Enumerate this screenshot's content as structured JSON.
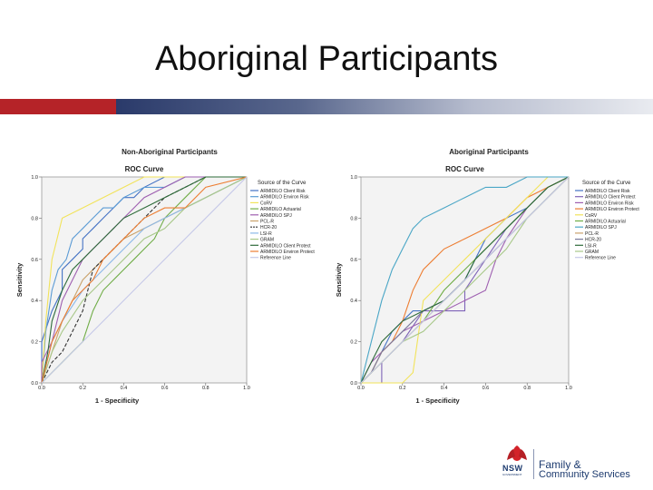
{
  "slide": {
    "title": "Aboriginal Participants",
    "accent_red": "#b52328",
    "accent_navy": "#2a3a6a"
  },
  "logo": {
    "word": "NSW",
    "subword": "GOVERNMENT",
    "line1": "Family & ",
    "line2": "Community Services",
    "icon": "waratah-icon"
  },
  "chart_data": [
    {
      "type": "line",
      "title": "Non-Aboriginal Participants",
      "subtitle": "ROC Curve",
      "xlabel": "1 - Specificity",
      "ylabel": "Sensitivity",
      "xlim": [
        0,
        1
      ],
      "ylim": [
        0,
        1
      ],
      "x_ticks": [
        "0.0",
        "0.2",
        "0.4",
        "0.6",
        "0.8",
        "1.0"
      ],
      "y_ticks": [
        "0.0",
        "0.2",
        "0.4",
        "0.6",
        "0.8",
        "1.0"
      ],
      "legend_title": "Source of the Curve",
      "legend_position": "right",
      "series": [
        {
          "name": "ARMIDILO Client Risk",
          "color": "#4472c4",
          "dash": "",
          "x": [
            0,
            0,
            0.05,
            0.1,
            0.1,
            0.15,
            0.2,
            0.2,
            0.25,
            0.3,
            0.35,
            0.4,
            0.45,
            0.5,
            0.6,
            0.7,
            0.8,
            0.9,
            1
          ],
          "y": [
            0,
            0.2,
            0.35,
            0.45,
            0.55,
            0.6,
            0.65,
            0.7,
            0.75,
            0.8,
            0.85,
            0.9,
            0.9,
            0.95,
            1,
            1,
            1,
            1,
            1
          ]
        },
        {
          "name": "ARMIDILO Environ Risk",
          "color": "#5b9bd5",
          "dash": "",
          "x": [
            0,
            0.02,
            0.05,
            0.08,
            0.12,
            0.15,
            0.2,
            0.25,
            0.3,
            0.35,
            0.4,
            0.5,
            0.6,
            0.7,
            0.8,
            1
          ],
          "y": [
            0,
            0.25,
            0.45,
            0.55,
            0.6,
            0.7,
            0.75,
            0.8,
            0.85,
            0.85,
            0.9,
            0.95,
            0.95,
            1,
            1,
            1
          ]
        },
        {
          "name": "CoRV",
          "color": "#f2e35a",
          "dash": "",
          "x": [
            0,
            0.02,
            0.05,
            0.1,
            0.2,
            0.3,
            0.4,
            0.5,
            0.7,
            1
          ],
          "y": [
            0,
            0.3,
            0.6,
            0.8,
            0.85,
            0.9,
            0.95,
            1,
            1,
            1
          ]
        },
        {
          "name": "ARMIDILO Actuarial",
          "color": "#70ad47",
          "dash": "",
          "x": [
            0,
            0.05,
            0.1,
            0.15,
            0.2,
            0.25,
            0.3,
            0.35,
            0.4,
            0.45,
            0.5,
            0.55,
            0.6,
            0.7,
            0.8,
            1
          ],
          "y": [
            0,
            0.05,
            0.1,
            0.15,
            0.2,
            0.35,
            0.45,
            0.5,
            0.55,
            0.6,
            0.65,
            0.7,
            0.8,
            0.9,
            1,
            1
          ]
        },
        {
          "name": "ARMIDILO SPJ",
          "color": "#9e5fb0",
          "dash": "",
          "x": [
            0,
            0,
            0.05,
            0.1,
            0.15,
            0.2,
            0.25,
            0.3,
            0.35,
            0.4,
            0.45,
            0.5,
            0.6,
            0.7,
            0.8,
            1
          ],
          "y": [
            0,
            0.1,
            0.2,
            0.4,
            0.5,
            0.6,
            0.65,
            0.7,
            0.75,
            0.8,
            0.85,
            0.9,
            0.95,
            1,
            1,
            1
          ]
        },
        {
          "name": "PCL-R",
          "color": "#c9a26b",
          "dash": "",
          "x": [
            0,
            0.05,
            0.1,
            0.15,
            0.2,
            0.3,
            0.4,
            0.5,
            0.6,
            0.7,
            0.8,
            0.9,
            1
          ],
          "y": [
            0,
            0.15,
            0.3,
            0.4,
            0.5,
            0.6,
            0.7,
            0.75,
            0.8,
            0.85,
            0.9,
            0.95,
            1
          ]
        },
        {
          "name": "HCR-20",
          "color": "#333333",
          "dash": "4,2",
          "x": [
            0,
            0.05,
            0.1,
            0.15,
            0.2,
            0.25,
            0.3,
            0.35,
            0.4,
            0.5,
            0.6,
            0.7,
            0.8,
            1
          ],
          "y": [
            0,
            0.1,
            0.15,
            0.25,
            0.35,
            0.55,
            0.6,
            0.65,
            0.7,
            0.8,
            0.9,
            0.95,
            1,
            1
          ]
        },
        {
          "name": "LSI-R",
          "color": "#8bb8e8",
          "dash": "",
          "x": [
            0,
            0.05,
            0.1,
            0.2,
            0.3,
            0.4,
            0.5,
            0.6,
            0.7,
            0.8,
            0.9,
            1
          ],
          "y": [
            0,
            0.2,
            0.3,
            0.45,
            0.55,
            0.65,
            0.75,
            0.8,
            0.85,
            0.9,
            0.95,
            1
          ]
        },
        {
          "name": "GRAM",
          "color": "#a8c889",
          "dash": "",
          "x": [
            0,
            0.05,
            0.1,
            0.2,
            0.3,
            0.4,
            0.5,
            0.6,
            0.7,
            0.8,
            0.9,
            1
          ],
          "y": [
            0,
            0.15,
            0.25,
            0.4,
            0.5,
            0.6,
            0.7,
            0.75,
            0.85,
            0.9,
            0.95,
            1
          ]
        },
        {
          "name": "ARMIDILO Client Protect",
          "color": "#2e6b3a",
          "dash": "",
          "x": [
            0,
            0.03,
            0.05,
            0.1,
            0.15,
            0.2,
            0.25,
            0.3,
            0.35,
            0.4,
            0.5,
            0.6,
            0.7,
            0.8,
            1
          ],
          "y": [
            0,
            0.15,
            0.3,
            0.45,
            0.55,
            0.6,
            0.65,
            0.7,
            0.75,
            0.8,
            0.85,
            0.9,
            0.95,
            1,
            1
          ]
        },
        {
          "name": "ARMIDILO Environ Protect",
          "color": "#ed7d31",
          "dash": "",
          "x": [
            0,
            0.05,
            0.1,
            0.15,
            0.2,
            0.25,
            0.3,
            0.4,
            0.5,
            0.6,
            0.7,
            0.75,
            0.8,
            1
          ],
          "y": [
            0,
            0.2,
            0.3,
            0.4,
            0.45,
            0.5,
            0.6,
            0.7,
            0.8,
            0.85,
            0.85,
            0.9,
            0.95,
            1
          ]
        },
        {
          "name": "Reference Line",
          "color": "#c5c8e8",
          "dash": "",
          "x": [
            0,
            1
          ],
          "y": [
            0,
            1
          ]
        }
      ]
    },
    {
      "type": "line",
      "title": "Aboriginal Participants",
      "subtitle": "ROC Curve",
      "xlabel": "1 - Specificity",
      "ylabel": "Sensitivity",
      "xlim": [
        0,
        1
      ],
      "ylim": [
        0,
        1
      ],
      "x_ticks": [
        "0.0",
        "0.2",
        "0.4",
        "0.6",
        "0.8",
        "1.0"
      ],
      "y_ticks": [
        "0.0",
        "0.2",
        "0.4",
        "0.6",
        "0.8",
        "1.0"
      ],
      "legend_title": "Source of the Curve",
      "legend_position": "right",
      "series": [
        {
          "name": "ARMIDILO Client Risk",
          "color": "#4472c4",
          "dash": "",
          "x": [
            0,
            0.05,
            0.1,
            0.15,
            0.2,
            0.25,
            0.3,
            0.4,
            0.5,
            0.55,
            0.6,
            0.7,
            0.8,
            0.9,
            1
          ],
          "y": [
            0,
            0.05,
            0.15,
            0.25,
            0.3,
            0.35,
            0.35,
            0.4,
            0.5,
            0.6,
            0.7,
            0.8,
            0.85,
            0.95,
            1
          ]
        },
        {
          "name": "ARMIDILO Client Protect",
          "color": "#7f63b8",
          "dash": "",
          "x": [
            0,
            0.1,
            0.1,
            0.2,
            0.3,
            0.5,
            0.5,
            0.6,
            0.7,
            0.8,
            0.9,
            1
          ],
          "y": [
            0,
            0,
            0.1,
            0.2,
            0.35,
            0.35,
            0.45,
            0.6,
            0.75,
            0.85,
            0.95,
            1
          ]
        },
        {
          "name": "ARMIDILO Environ Risk",
          "color": "#9e5fb0",
          "dash": "",
          "x": [
            0,
            0.05,
            0.1,
            0.2,
            0.3,
            0.4,
            0.5,
            0.6,
            0.65,
            0.7,
            0.8,
            0.9,
            1
          ],
          "y": [
            0,
            0.1,
            0.15,
            0.25,
            0.3,
            0.35,
            0.4,
            0.45,
            0.6,
            0.7,
            0.85,
            0.95,
            1
          ]
        },
        {
          "name": "ARMIDILO Environ Protect",
          "color": "#ed7d31",
          "dash": "",
          "x": [
            0,
            0.05,
            0.1,
            0.15,
            0.2,
            0.25,
            0.3,
            0.35,
            0.4,
            0.5,
            0.6,
            0.7,
            0.8,
            0.9,
            1
          ],
          "y": [
            0,
            0.05,
            0.15,
            0.2,
            0.3,
            0.45,
            0.55,
            0.6,
            0.65,
            0.7,
            0.75,
            0.8,
            0.9,
            0.95,
            1
          ]
        },
        {
          "name": "CoRV",
          "color": "#f2e35a",
          "dash": "",
          "x": [
            0,
            0.2,
            0.25,
            0.3,
            0.4,
            0.5,
            0.6,
            0.7,
            0.8,
            0.9,
            1
          ],
          "y": [
            0,
            0,
            0.05,
            0.4,
            0.5,
            0.6,
            0.7,
            0.8,
            0.9,
            1,
            1
          ]
        },
        {
          "name": "ARMIDILO Actuarial",
          "color": "#70ad47",
          "dash": "",
          "x": [
            0,
            0.05,
            0.1,
            0.2,
            0.3,
            0.4,
            0.5,
            0.6,
            0.7,
            0.8,
            0.9,
            1
          ],
          "y": [
            0,
            0.05,
            0.1,
            0.2,
            0.3,
            0.45,
            0.55,
            0.65,
            0.75,
            0.85,
            0.95,
            1
          ]
        },
        {
          "name": "ARMIDILO SPJ",
          "color": "#4aa6c6",
          "dash": "",
          "x": [
            0,
            0.05,
            0.1,
            0.15,
            0.2,
            0.25,
            0.3,
            0.4,
            0.5,
            0.6,
            0.7,
            0.8,
            0.9,
            1
          ],
          "y": [
            0,
            0.2,
            0.4,
            0.55,
            0.65,
            0.75,
            0.8,
            0.85,
            0.9,
            0.95,
            0.95,
            1,
            1,
            1
          ]
        },
        {
          "name": "PCL-R",
          "color": "#c9a26b",
          "dash": "",
          "x": [
            0,
            0.1,
            0.2,
            0.3,
            0.4,
            0.5,
            0.6,
            0.7,
            0.8,
            0.9,
            1
          ],
          "y": [
            0,
            0.1,
            0.2,
            0.3,
            0.4,
            0.5,
            0.6,
            0.7,
            0.8,
            0.9,
            1
          ]
        },
        {
          "name": "HCR-20",
          "color": "#7a7a9a",
          "dash": "",
          "x": [
            0,
            0.05,
            0.1,
            0.2,
            0.3,
            0.4,
            0.5,
            0.6,
            0.7,
            0.8,
            0.9,
            1
          ],
          "y": [
            0,
            0.05,
            0.15,
            0.25,
            0.35,
            0.4,
            0.5,
            0.6,
            0.7,
            0.8,
            0.9,
            1
          ]
        },
        {
          "name": "LSI-R",
          "color": "#2e6b3a",
          "dash": "",
          "x": [
            0,
            0.05,
            0.1,
            0.2,
            0.3,
            0.4,
            0.5,
            0.55,
            0.6,
            0.7,
            0.8,
            0.9,
            1
          ],
          "y": [
            0,
            0.1,
            0.2,
            0.3,
            0.35,
            0.4,
            0.5,
            0.6,
            0.65,
            0.75,
            0.85,
            0.95,
            1
          ]
        },
        {
          "name": "GRAM",
          "color": "#a8c889",
          "dash": "",
          "x": [
            0,
            0.1,
            0.2,
            0.3,
            0.4,
            0.5,
            0.6,
            0.7,
            0.8,
            0.9,
            1
          ],
          "y": [
            0,
            0.1,
            0.2,
            0.25,
            0.35,
            0.45,
            0.55,
            0.65,
            0.8,
            0.9,
            1
          ]
        },
        {
          "name": "Reference Line",
          "color": "#c5c8e8",
          "dash": "",
          "x": [
            0,
            1
          ],
          "y": [
            0,
            1
          ]
        }
      ]
    }
  ]
}
